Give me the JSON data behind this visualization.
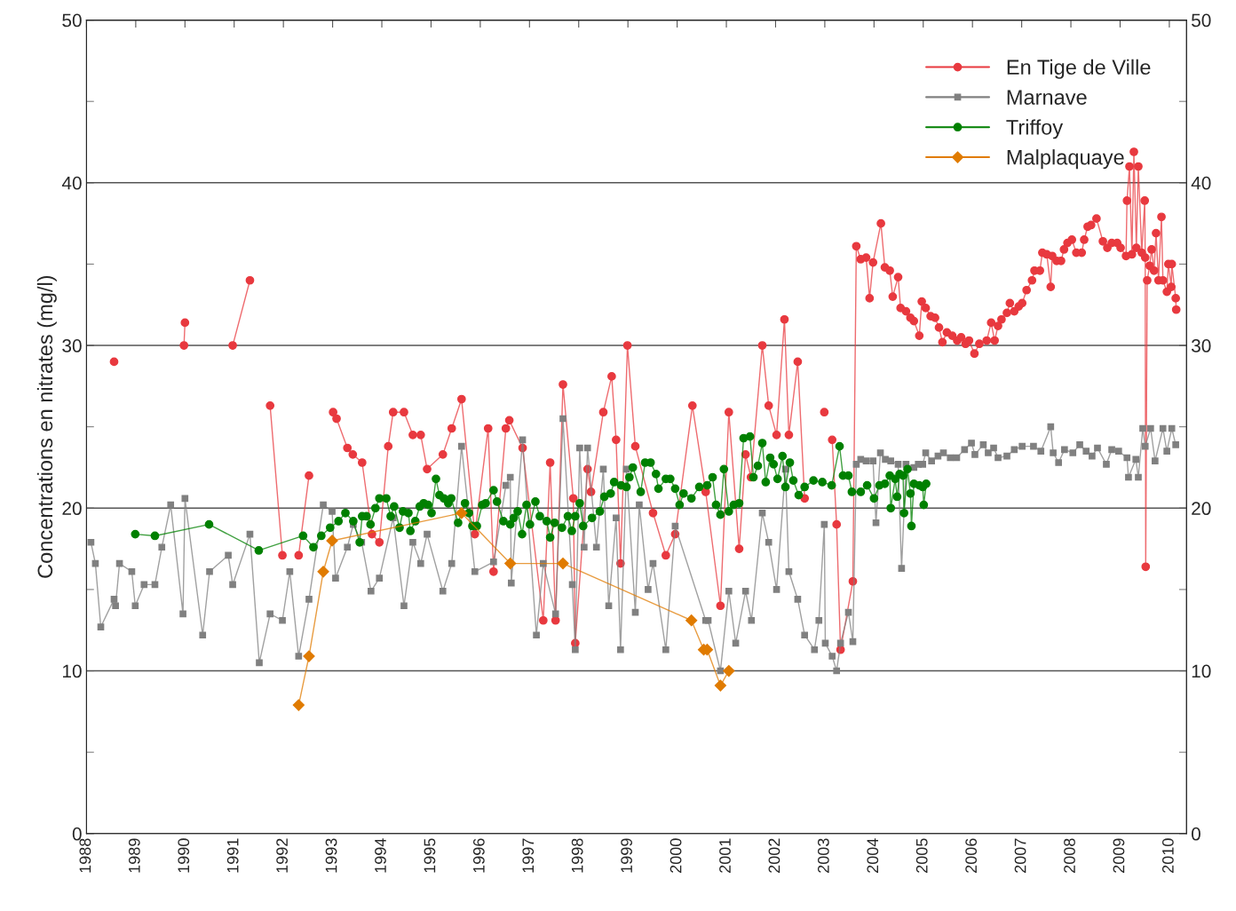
{
  "chart_data": {
    "type": "line",
    "ylabel": "Concentrations en nitrates (mg/l)",
    "xlim": [
      1988,
      2010.35
    ],
    "xticks": [
      {
        "value": 1988,
        "label": "1988"
      },
      {
        "value": 1989,
        "label": "1989"
      },
      {
        "value": 1990,
        "label": "1990"
      },
      {
        "value": 1991,
        "label": "1991"
      },
      {
        "value": 1992,
        "label": "1992"
      },
      {
        "value": 1993,
        "label": "1993"
      },
      {
        "value": 1994,
        "label": "1994"
      },
      {
        "value": 1995,
        "label": "1995"
      },
      {
        "value": 1996,
        "label": "1996"
      },
      {
        "value": 1997,
        "label": "1997"
      },
      {
        "value": 1998,
        "label": "1998"
      },
      {
        "value": 1999,
        "label": "1999"
      },
      {
        "value": 2000,
        "label": "2000"
      },
      {
        "value": 2001,
        "label": "2001"
      },
      {
        "value": 2002,
        "label": "2002"
      },
      {
        "value": 2003,
        "label": "2003"
      },
      {
        "value": 2004,
        "label": "2004"
      },
      {
        "value": 2005,
        "label": "2005"
      },
      {
        "value": 2006,
        "label": "2006"
      },
      {
        "value": 2007,
        "label": "2007"
      },
      {
        "value": 2008,
        "label": "2008"
      },
      {
        "value": 2009,
        "label": "2009"
      },
      {
        "value": 2010,
        "label": "2010"
      }
    ],
    "ylim": [
      0,
      50
    ],
    "yticks": [
      0,
      {
        "value": 5,
        "label": null
      },
      10,
      {
        "value": 15,
        "label": null
      },
      20,
      {
        "value": 25,
        "label": null
      },
      30,
      {
        "value": 35,
        "label": null
      },
      40,
      {
        "value": 45,
        "label": null
      },
      50
    ],
    "y2lim": [
      0,
      50
    ],
    "y2ticks": [
      0,
      {
        "value": 5,
        "label": null
      },
      10,
      {
        "value": 15,
        "label": null
      },
      20,
      {
        "value": 25,
        "label": null
      },
      30,
      {
        "value": 35,
        "label": null
      },
      40,
      {
        "value": 45,
        "label": null
      },
      50
    ],
    "grid": "y",
    "legend": "top right",
    "line_style": "solid",
    "series": [
      {
        "name": "En Tige de Ville",
        "color": "#e8393f",
        "marker": "circle",
        "x": [
          1988.56,
          null,
          1989.98,
          1990.0,
          null,
          1990.97,
          1991.32,
          null,
          1991.73,
          1991.98,
          null,
          1992.31,
          1992.52,
          null,
          1993.01,
          1993.08,
          1993.3,
          1993.41,
          1993.6,
          1993.8,
          1993.95,
          1994.13,
          1994.23,
          1994.45,
          1994.63,
          1994.79,
          1994.92,
          1995.24,
          1995.42,
          1995.62,
          1995.89,
          1996.16,
          1996.27,
          1996.52,
          1996.59,
          1996.86,
          1997.28,
          1997.42,
          1997.53,
          1997.68,
          1997.89,
          1997.93,
          1998.18,
          1998.25,
          1998.5,
          1998.67,
          1998.76,
          1998.85,
          1998.99,
          1999.15,
          1999.51,
          1999.77,
          1999.96,
          2000.31,
          2000.58,
          2000.88,
          2001.05,
          2001.26,
          2001.39,
          2001.5,
          2001.73,
          2001.86,
          2002.02,
          2002.18,
          2002.27,
          2002.45,
          2002.59,
          null,
          2002.99,
          null,
          2003.15,
          2003.24,
          2003.32,
          2003.57,
          2003.64,
          2003.73,
          2003.84,
          2003.91,
          2003.98,
          2004.14,
          2004.22,
          2004.32,
          2004.38,
          2004.49,
          2004.54,
          2004.65,
          2004.74,
          2004.81,
          2004.92,
          2004.97,
          2005.05,
          2005.15,
          2005.24,
          2005.32,
          2005.39,
          2005.48,
          2005.59,
          2005.69,
          2005.77,
          2005.86,
          2005.93,
          2006.04,
          2006.14,
          2006.29,
          2006.38,
          2006.45,
          2006.52,
          2006.59,
          2006.7,
          2006.76,
          2006.85,
          2006.94,
          2007.01,
          2007.1,
          2007.21,
          2007.26,
          2007.37,
          2007.42,
          2007.51,
          2007.59,
          2007.62,
          2007.71,
          2007.8,
          2007.86,
          2007.93,
          2008.02,
          2008.11,
          2008.22,
          2008.27,
          2008.34,
          2008.41,
          2008.52,
          2008.65,
          2008.74,
          2008.83,
          2008.94,
          2009.01,
          2009.12,
          2009.14,
          2009.19,
          2009.24,
          2009.28,
          2009.33,
          2009.37,
          2009.44,
          2009.5,
          2009.51,
          2009.52,
          2009.55,
          2009.6,
          2009.64,
          2009.69,
          2009.73,
          2009.78,
          2009.84,
          2009.87,
          2009.95,
          2009.98,
          2010.04,
          2010.05,
          2010.13,
          2010.14
        ],
        "values": [
          29.0,
          null,
          30.0,
          31.4,
          null,
          30.0,
          34.0,
          null,
          26.3,
          17.1,
          null,
          17.1,
          22.0,
          null,
          25.9,
          25.5,
          23.7,
          23.3,
          22.8,
          18.4,
          17.9,
          23.8,
          25.9,
          25.9,
          24.5,
          24.5,
          22.4,
          23.3,
          24.9,
          26.7,
          18.4,
          24.9,
          16.1,
          24.9,
          25.4,
          23.7,
          13.1,
          22.8,
          13.1,
          27.6,
          20.6,
          11.7,
          22.4,
          21.0,
          25.9,
          28.1,
          24.2,
          16.6,
          30.0,
          23.8,
          19.7,
          17.1,
          18.4,
          26.3,
          21.0,
          14.0,
          25.9,
          17.5,
          23.3,
          21.9,
          30.0,
          26.3,
          24.5,
          31.6,
          24.5,
          29.0,
          20.6,
          null,
          25.9,
          null,
          24.2,
          19.0,
          11.3,
          15.5,
          36.1,
          35.3,
          35.4,
          32.9,
          35.1,
          37.5,
          34.8,
          34.6,
          33.0,
          34.2,
          32.3,
          32.1,
          31.7,
          31.5,
          30.6,
          32.7,
          32.3,
          31.8,
          31.7,
          31.1,
          30.2,
          30.8,
          30.6,
          30.3,
          30.5,
          30.1,
          30.3,
          29.5,
          30.1,
          30.3,
          31.4,
          30.3,
          31.2,
          31.6,
          32.0,
          32.6,
          32.1,
          32.4,
          32.6,
          33.4,
          34.0,
          34.6,
          34.6,
          35.7,
          35.6,
          33.6,
          35.5,
          35.2,
          35.2,
          35.9,
          36.3,
          36.5,
          35.7,
          35.7,
          36.5,
          37.3,
          37.4,
          37.8,
          36.4,
          36.0,
          36.3,
          36.3,
          36.0,
          35.5,
          38.9,
          41.0,
          35.6,
          41.9,
          36.0,
          41.0,
          35.7,
          38.9,
          35.4,
          16.4,
          34.0,
          34.9,
          35.9,
          34.6,
          36.9,
          34.0,
          37.9,
          34.0,
          33.3,
          35.0,
          33.6,
          35.0,
          32.9,
          32.2
        ]
      },
      {
        "name": "Marnave",
        "color": "#808080",
        "marker": "square",
        "x": [
          1988.09,
          1988.18,
          1988.29,
          1988.56,
          1988.59,
          1988.67,
          1988.92,
          1988.99,
          1989.17,
          1989.39,
          1989.53,
          1989.71,
          1989.96,
          1990.0,
          1990.36,
          1990.5,
          1990.88,
          1990.97,
          1991.32,
          1991.51,
          1991.73,
          1991.98,
          1992.13,
          1992.31,
          1992.52,
          1992.81,
          1992.99,
          1993.06,
          1993.3,
          1993.42,
          1993.59,
          1993.78,
          1993.95,
          1994.23,
          1994.45,
          1994.63,
          1994.79,
          1994.92,
          1995.24,
          1995.42,
          1995.62,
          1995.89,
          1996.27,
          1996.52,
          1996.61,
          1996.63,
          1996.86,
          1997.14,
          1997.28,
          1997.53,
          1997.68,
          1997.87,
          1997.93,
          1998.02,
          1998.11,
          1998.18,
          1998.36,
          1998.5,
          1998.61,
          1998.76,
          1998.85,
          1998.97,
          1999.15,
          1999.23,
          1999.41,
          1999.51,
          1999.77,
          1999.96,
          2000.58,
          2000.63,
          2000.88,
          2001.05,
          2001.19,
          2001.39,
          2001.51,
          2001.73,
          2001.86,
          2002.02,
          2002.2,
          2002.27,
          2002.45,
          2002.59,
          2002.79,
          2002.88,
          2002.99,
          2003.01,
          2003.15,
          2003.24,
          2003.32,
          2003.48,
          2003.57,
          2003.64,
          2003.73,
          2003.84,
          2003.98,
          2004.04,
          2004.13,
          2004.23,
          2004.34,
          2004.49,
          2004.56,
          2004.65,
          2004.81,
          2004.9,
          2004.99,
          2005.05,
          2005.17,
          2005.3,
          2005.41,
          2005.55,
          2005.68,
          2005.84,
          2005.98,
          2006.05,
          2006.22,
          2006.32,
          2006.43,
          2006.52,
          2006.7,
          2006.85,
          2007.01,
          2007.24,
          2007.39,
          2007.59,
          2007.64,
          2007.75,
          2007.87,
          2008.04,
          2008.18,
          2008.31,
          2008.43,
          2008.54,
          2008.72,
          2008.83,
          2008.97,
          2009.14,
          2009.17,
          2009.32,
          2009.37,
          2009.46,
          2009.51,
          2009.62,
          2009.71,
          2009.87,
          2009.95,
          2010.05,
          2010.13
        ],
        "values": [
          17.9,
          16.6,
          12.7,
          14.4,
          14.0,
          16.6,
          16.1,
          14.0,
          15.3,
          15.3,
          17.6,
          20.2,
          13.5,
          20.6,
          12.2,
          16.1,
          17.1,
          15.3,
          18.4,
          10.5,
          13.5,
          13.1,
          16.1,
          10.9,
          14.4,
          20.2,
          19.8,
          15.7,
          17.6,
          19.0,
          17.9,
          14.9,
          15.7,
          19.4,
          14.0,
          17.9,
          16.6,
          18.4,
          14.9,
          16.6,
          23.8,
          16.1,
          16.7,
          21.4,
          21.9,
          15.4,
          24.2,
          12.2,
          16.6,
          13.5,
          25.5,
          15.3,
          11.3,
          23.7,
          17.6,
          23.7,
          17.6,
          22.4,
          14.0,
          19.4,
          11.3,
          22.4,
          13.6,
          20.2,
          15.0,
          16.6,
          11.3,
          18.9,
          13.1,
          13.1,
          10.0,
          14.9,
          11.7,
          14.9,
          13.1,
          19.7,
          17.9,
          15.0,
          22.4,
          16.1,
          14.4,
          12.2,
          11.3,
          13.1,
          19.0,
          11.7,
          10.9,
          10.0,
          11.7,
          13.6,
          11.8,
          22.7,
          23.0,
          22.9,
          22.9,
          19.1,
          23.4,
          23.0,
          22.9,
          22.7,
          16.3,
          22.7,
          22.5,
          22.7,
          22.7,
          23.4,
          22.9,
          23.2,
          23.4,
          23.1,
          23.1,
          23.6,
          24.0,
          23.3,
          23.9,
          23.4,
          23.7,
          23.1,
          23.2,
          23.6,
          23.8,
          23.8,
          23.5,
          25.0,
          23.4,
          22.8,
          23.6,
          23.4,
          23.9,
          23.5,
          23.2,
          23.7,
          22.7,
          23.6,
          23.5,
          23.1,
          21.9,
          23.0,
          21.9,
          24.9,
          23.8,
          24.9,
          22.9,
          24.9,
          23.5,
          24.9,
          23.9
        ]
      },
      {
        "name": "Triffoy",
        "color": "#008000",
        "marker": "circle",
        "x": [
          1988.99,
          1989.39,
          1990.49,
          1991.5,
          1992.4,
          1992.61,
          1992.77,
          1992.95,
          1993.12,
          1993.26,
          1993.42,
          1993.55,
          1993.6,
          1993.69,
          1993.77,
          1993.87,
          1993.95,
          1994.09,
          1994.18,
          1994.25,
          1994.36,
          1994.43,
          1994.54,
          1994.58,
          1994.68,
          1994.77,
          1994.85,
          1994.94,
          1995.01,
          1995.1,
          1995.17,
          1995.26,
          1995.35,
          1995.41,
          1995.55,
          1995.69,
          1995.77,
          1995.84,
          1995.93,
          1996.04,
          1996.11,
          1996.27,
          1996.34,
          1996.47,
          1996.61,
          1996.68,
          1996.76,
          1996.85,
          1996.94,
          1997.01,
          1997.12,
          1997.21,
          1997.35,
          1997.42,
          1997.51,
          1997.66,
          1997.78,
          1997.86,
          1997.93,
          1998.02,
          1998.09,
          1998.27,
          1998.43,
          1998.52,
          1998.65,
          1998.72,
          1998.86,
          1998.97,
          1999.03,
          1999.1,
          1999.26,
          1999.35,
          1999.46,
          1999.57,
          1999.62,
          1999.77,
          1999.86,
          1999.96,
          2000.05,
          2000.13,
          2000.29,
          2000.45,
          2000.61,
          2000.72,
          2000.79,
          2000.88,
          2000.95,
          2001.05,
          2001.15,
          2001.26,
          2001.35,
          2001.48,
          2001.55,
          2001.64,
          2001.73,
          2001.8,
          2001.89,
          2001.96,
          2002.04,
          2002.14,
          2002.2,
          2002.29,
          2002.36,
          2002.47,
          2002.59,
          2002.77,
          2002.95,
          2003.14,
          2003.3,
          2003.37,
          2003.48,
          2003.55,
          2003.73,
          2003.86,
          2004.0,
          2004.11,
          2004.22,
          2004.32,
          2004.34,
          2004.43,
          2004.47,
          2004.52,
          2004.59,
          2004.61,
          2004.68,
          2004.74,
          2004.76,
          2004.81,
          2004.92,
          2004.99,
          2005.01,
          2005.06
        ],
        "values": [
          18.4,
          18.3,
          19.0,
          17.4,
          18.3,
          17.6,
          18.3,
          18.8,
          19.2,
          19.7,
          19.2,
          17.9,
          19.5,
          19.5,
          19.0,
          20.0,
          20.6,
          20.6,
          19.5,
          20.1,
          18.8,
          19.8,
          19.7,
          18.6,
          19.2,
          20.1,
          20.3,
          20.2,
          19.7,
          21.8,
          20.8,
          20.6,
          20.3,
          20.6,
          19.1,
          20.3,
          19.7,
          18.9,
          18.9,
          20.2,
          20.3,
          21.1,
          20.4,
          19.2,
          19.0,
          19.4,
          19.8,
          18.4,
          20.2,
          19.0,
          20.4,
          19.5,
          19.2,
          18.2,
          19.1,
          18.8,
          19.5,
          18.6,
          19.5,
          20.3,
          18.9,
          19.4,
          19.8,
          20.7,
          20.9,
          21.6,
          21.4,
          21.3,
          21.9,
          22.5,
          21.0,
          22.8,
          22.8,
          22.1,
          21.2,
          21.8,
          21.8,
          21.2,
          20.2,
          20.9,
          20.6,
          21.3,
          21.4,
          21.9,
          20.2,
          19.6,
          22.4,
          19.8,
          20.2,
          20.3,
          24.3,
          24.4,
          21.9,
          22.6,
          24.0,
          21.6,
          23.1,
          22.7,
          21.8,
          23.2,
          21.3,
          22.8,
          21.7,
          20.8,
          21.3,
          21.7,
          21.6,
          21.4,
          23.8,
          22.0,
          22.0,
          21.0,
          21.0,
          21.4,
          20.6,
          21.4,
          21.5,
          22.0,
          20.0,
          21.8,
          20.7,
          22.1,
          22.0,
          19.7,
          22.4,
          20.9,
          18.9,
          21.5,
          21.4,
          21.3,
          20.2,
          21.5
        ]
      },
      {
        "name": "Malplaquaye",
        "color": "#e07b00",
        "marker": "diamond",
        "x": [
          1992.31,
          1992.52,
          1992.81,
          1992.99,
          1995.62,
          1996.61,
          1997.68,
          2000.29,
          2000.54,
          2000.61,
          2000.88,
          2001.05
        ],
        "values": [
          7.9,
          10.9,
          16.1,
          18.0,
          19.7,
          16.6,
          16.6,
          13.1,
          11.3,
          11.3,
          9.1,
          10.0
        ]
      }
    ]
  }
}
